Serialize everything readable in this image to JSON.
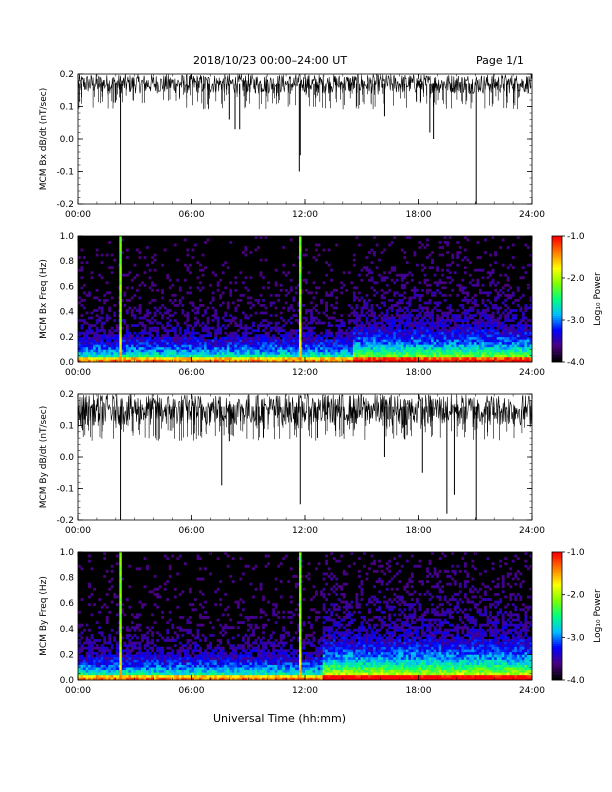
{
  "header": {
    "title": "2018/10/23  00:00–24:00 UT",
    "page": "Page 1/1"
  },
  "xlabel": "Universal Time (hh:mm)",
  "colors": {
    "trace": "#000000",
    "spectrogram_background": "#000000",
    "colormap": [
      "#000000",
      "#4b0082",
      "#0000ff",
      "#00bfff",
      "#00ff7f",
      "#7fff00",
      "#ffff00",
      "#ff7f00",
      "#ff0000"
    ]
  },
  "chart_data": [
    {
      "type": "line",
      "ylabel": "MCM Bx dB/dt (nT/sec)",
      "x_ticks": [
        "00:00",
        "06:00",
        "12:00",
        "18:00",
        "24:00"
      ],
      "xlim": [
        0,
        24
      ],
      "ylim": [
        -0.2,
        0.2
      ],
      "y_ticks": [
        "0.2",
        "0.1",
        "0.0",
        "-0.1",
        "-0.2"
      ],
      "baseline": 0.17,
      "noise_band": [
        0.14,
        0.2
      ],
      "spikes": [
        {
          "x": 2.25,
          "y": -0.2
        },
        {
          "x": 8.0,
          "y": 0.06
        },
        {
          "x": 8.3,
          "y": 0.03
        },
        {
          "x": 8.55,
          "y": 0.03
        },
        {
          "x": 11.7,
          "y": -0.1
        },
        {
          "x": 11.75,
          "y": -0.05
        },
        {
          "x": 16.2,
          "y": 0.07
        },
        {
          "x": 18.6,
          "y": 0.02
        },
        {
          "x": 18.8,
          "y": 0.0
        },
        {
          "x": 21.05,
          "y": -0.2
        }
      ]
    },
    {
      "type": "heatmap",
      "ylabel": "MCM Bx Freq (Hz)",
      "x_ticks": [
        "00:00",
        "06:00",
        "12:00",
        "18:00",
        "24:00"
      ],
      "xlim": [
        0,
        24
      ],
      "ylim": [
        0,
        1
      ],
      "y_ticks": [
        "1.0",
        "0.8",
        "0.6",
        "0.4",
        "0.2",
        "0.0"
      ],
      "colorbar": {
        "label": "Log₁₀ Power",
        "ticks": [
          "-1.0",
          "-2.0",
          "-3.0",
          "-4.0"
        ],
        "range": [
          -4,
          -1
        ]
      },
      "bright_columns": [
        2.25,
        11.75
      ],
      "activity_windows": [
        [
          14.5,
          24,
          0.7
        ]
      ]
    },
    {
      "type": "line",
      "ylabel": "MCM By dB/dt (nT/sec)",
      "x_ticks": [
        "00:00",
        "06:00",
        "12:00",
        "18:00",
        "24:00"
      ],
      "xlim": [
        0,
        24
      ],
      "ylim": [
        -0.2,
        0.2
      ],
      "y_ticks": [
        "0.2",
        "0.1",
        "0.0",
        "-0.1",
        "-0.2"
      ],
      "baseline": 0.16,
      "noise_band": [
        0.1,
        0.2
      ],
      "spikes": [
        {
          "x": 2.25,
          "y": -0.2
        },
        {
          "x": 7.6,
          "y": -0.09
        },
        {
          "x": 8.0,
          "y": 0.05
        },
        {
          "x": 11.75,
          "y": -0.15
        },
        {
          "x": 16.2,
          "y": 0.0
        },
        {
          "x": 18.2,
          "y": -0.05
        },
        {
          "x": 19.5,
          "y": -0.18
        },
        {
          "x": 19.9,
          "y": -0.12
        },
        {
          "x": 21.05,
          "y": -0.2
        }
      ]
    },
    {
      "type": "heatmap",
      "ylabel": "MCM By Freq (Hz)",
      "x_ticks": [
        "00:00",
        "06:00",
        "12:00",
        "18:00",
        "24:00"
      ],
      "xlim": [
        0,
        24
      ],
      "ylim": [
        0,
        1
      ],
      "y_ticks": [
        "1.0",
        "0.8",
        "0.6",
        "0.4",
        "0.2",
        "0.0"
      ],
      "colorbar": {
        "label": "Log₁₀ Power",
        "ticks": [
          "-1.0",
          "-2.0",
          "-3.0",
          "-4.0"
        ],
        "range": [
          -4,
          -1
        ]
      },
      "bright_columns": [
        2.25,
        11.75
      ],
      "activity_windows": [
        [
          13.0,
          24,
          1.0
        ]
      ]
    }
  ]
}
